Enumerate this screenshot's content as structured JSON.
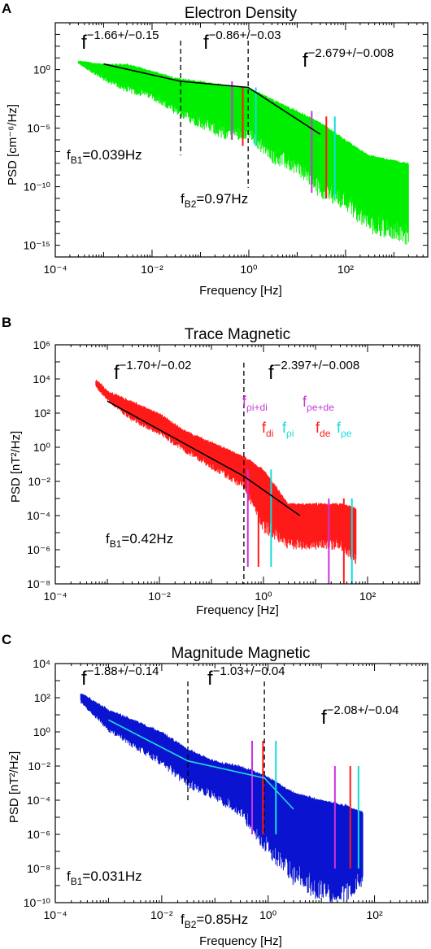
{
  "figure": {
    "panels": [
      {
        "letter": "A",
        "title": "Electron Density",
        "ylabel": "PSD [cm⁻⁶/Hz]",
        "xlabel": "Frequency [Hz]"
      },
      {
        "letter": "B",
        "title": "Trace Magnetic",
        "ylabel": "PSD [nT²/Hz]",
        "xlabel": "Frequency [Hz]"
      },
      {
        "letter": "C",
        "title": "Magnitude Magnetic",
        "ylabel": "PSD [nT²/Hz]",
        "xlabel": "Frequency [Hz]"
      }
    ]
  },
  "chart_data": [
    {
      "type": "line",
      "title": "Electron Density",
      "xlabel": "Frequency [Hz]",
      "ylabel": "PSD [cm^-6/Hz]",
      "xscale": "log",
      "yscale": "log",
      "xlim": [
        0.0001,
        5000
      ],
      "ylim": [
        1e-16,
        10000.0
      ],
      "xticks": [
        "10⁻⁴",
        "10⁻²",
        "10⁰",
        "10²"
      ],
      "yticks": [
        "10⁰",
        "10⁻⁵",
        "10⁻¹⁰",
        "10⁻¹⁵"
      ],
      "spectrum_color": "#00ee00",
      "fit_color": "#000000",
      "spectrum_envelope": {
        "x": [
          0.0003,
          0.001,
          0.003,
          0.01,
          0.03,
          0.1,
          0.3,
          1,
          3,
          10,
          30,
          100,
          300,
          2000
        ],
        "upper": [
          6,
          3,
          3,
          0.8,
          0.2,
          0.1,
          0.05,
          0.03,
          0.003,
          0.0003,
          3e-05,
          1e-06,
          5e-08,
          1e-08
        ],
        "lower": [
          3,
          0.1,
          0.01,
          0.003,
          0.0001,
          1e-05,
          1e-06,
          1e-06,
          1e-08,
          1e-09,
          1e-11,
          1e-12,
          1e-14,
          1e-15
        ]
      },
      "fit": {
        "x": [
          0.001,
          0.039,
          0.97,
          30
        ],
        "y": [
          3,
          0.1,
          0.03,
          3e-06
        ]
      },
      "fit_labels": [
        {
          "base": "f",
          "exp": "−1.66+/−0.15"
        },
        {
          "base": "f",
          "exp": "−0.86+/−0.03"
        },
        {
          "base": "f",
          "exp": "−2.679+/−0.008"
        }
      ],
      "breaks": [
        {
          "label": "f",
          "sub": "B1",
          "value": "=0.039Hz",
          "x": 0.039
        },
        {
          "label": "f",
          "sub": "B2",
          "value": "=0.97Hz",
          "x": 0.97
        }
      ],
      "vlines": [
        {
          "x": 0.45,
          "color": "#cc33dd",
          "top": 0.1,
          "bottom": 1e-06
        },
        {
          "x": 0.75,
          "color": "#ff1a1a",
          "top": 0.03,
          "bottom": 3e-07
        },
        {
          "x": 1.4,
          "color": "#11dddd",
          "top": 0.03,
          "bottom": 3e-07
        },
        {
          "x": 20,
          "color": "#cc33dd",
          "top": 0.0003,
          "bottom": 3e-11
        },
        {
          "x": 40,
          "color": "#ff1a1a",
          "top": 0.0001,
          "bottom": 1e-11
        },
        {
          "x": 60,
          "color": "#11dddd",
          "top": 0.0001,
          "bottom": 1e-11
        }
      ]
    },
    {
      "type": "line",
      "title": "Trace Magnetic",
      "xlabel": "Frequency [Hz]",
      "ylabel": "PSD [nT^2/Hz]",
      "xscale": "log",
      "yscale": "log",
      "xlim": [
        0.0001,
        1000
      ],
      "ylim": [
        1e-08,
        1000000.0
      ],
      "xticks": [
        "10⁻⁴",
        "10⁻²",
        "10⁰",
        "10²"
      ],
      "yticks": [
        "10⁶",
        "10⁴",
        "10²",
        "10⁰",
        "10⁻²",
        "10⁻⁴",
        "10⁻⁶",
        "10⁻⁸"
      ],
      "spectrum_color": "#ff1a1a",
      "fit_color": "#000000",
      "spectrum_envelope": {
        "x": [
          0.0006,
          0.001,
          0.003,
          0.01,
          0.03,
          0.1,
          0.42,
          1,
          3,
          10,
          30,
          60
        ],
        "upper": [
          10000,
          2000,
          500,
          100,
          10,
          2,
          0.3,
          0.05,
          0.0005,
          0.0005,
          0.0005,
          0.0003
        ],
        "lower": [
          3000,
          500,
          30,
          5,
          0.5,
          0.05,
          0.003,
          1e-05,
          1e-06,
          1e-06,
          1e-06,
          1e-07
        ]
      },
      "fit": {
        "x": [
          0.001,
          0.42,
          5
        ],
        "y": [
          500,
          0.02,
          0.0001
        ]
      },
      "fit_labels": [
        {
          "base": "f",
          "exp": "−1.70+/−0.02"
        },
        {
          "base": "f",
          "exp": "−2.397+/−0.008"
        }
      ],
      "breaks": [
        {
          "label": "f",
          "sub": "B1",
          "value": "=0.42Hz",
          "x": 0.42
        }
      ],
      "legend": [
        {
          "text": "f",
          "sub": "ρi+di",
          "color": "#cc33dd"
        },
        {
          "text": "f",
          "sub": "ρe+de",
          "color": "#cc33dd"
        },
        {
          "text": "f",
          "sub": "di",
          "color": "#ff1a1a"
        },
        {
          "text": "f",
          "sub": "ρi",
          "color": "#11dddd"
        },
        {
          "text": "f",
          "sub": "de",
          "color": "#ff1a1a"
        },
        {
          "text": "f",
          "sub": "ρe",
          "color": "#11dddd"
        }
      ],
      "vlines": [
        {
          "x": 0.5,
          "color": "#cc33dd",
          "top": 0.05,
          "bottom": 1e-07
        },
        {
          "x": 0.8,
          "color": "#ff1a1a",
          "top": 0.05,
          "bottom": 1e-07
        },
        {
          "x": 1.4,
          "color": "#11dddd",
          "top": 0.05,
          "bottom": 1e-07
        },
        {
          "x": 18,
          "color": "#cc33dd",
          "top": 0.001,
          "bottom": 1e-08
        },
        {
          "x": 35,
          "color": "#ff1a1a",
          "top": 0.001,
          "bottom": 1e-08
        },
        {
          "x": 50,
          "color": "#11dddd",
          "top": 0.001,
          "bottom": 1e-08
        }
      ]
    },
    {
      "type": "line",
      "title": "Magnitude Magnetic",
      "xlabel": "Frequency [Hz]",
      "ylabel": "PSD [nT^2/Hz]",
      "xscale": "log",
      "yscale": "log",
      "xlim": [
        0.0001,
        1000
      ],
      "ylim": [
        1e-10,
        10000.0
      ],
      "xticks": [
        "10⁻⁴",
        "10⁻²",
        "10⁰",
        "10²"
      ],
      "yticks": [
        "10⁴",
        "10²",
        "10⁰",
        "10⁻²",
        "10⁻⁴",
        "10⁻⁶",
        "10⁻⁸",
        "10⁻¹⁰"
      ],
      "spectrum_color": "#0a14d0",
      "fit_color": "#22dddd",
      "spectrum_envelope": {
        "x": [
          0.0003,
          0.001,
          0.003,
          0.01,
          0.031,
          0.1,
          0.3,
          0.85,
          3,
          10,
          30,
          60
        ],
        "upper": [
          200,
          20,
          5,
          1,
          0.1,
          0.02,
          0.01,
          0.003,
          0.0003,
          0.0001,
          5e-05,
          2e-05
        ],
        "lower": [
          50,
          1,
          0.1,
          0.01,
          0.0005,
          0.0001,
          1e-05,
          1e-07,
          1e-09,
          1e-10,
          1e-10,
          1e-09
        ]
      },
      "fit": {
        "x": [
          0.001,
          0.031,
          0.85,
          3
        ],
        "y": [
          5,
          0.02,
          0.002,
          3e-05
        ]
      },
      "fit_labels": [
        {
          "base": "f",
          "exp": "−1.88+/−0.14"
        },
        {
          "base": "f",
          "exp": "−1.03+/−0.04"
        },
        {
          "base": "f",
          "exp": "−2.08+/−0.04"
        }
      ],
      "breaks": [
        {
          "label": "f",
          "sub": "B1",
          "value": "=0.031Hz",
          "x": 0.031
        },
        {
          "label": "f",
          "sub": "B2",
          "value": "=0.85Hz",
          "x": 0.85
        }
      ],
      "vlines": [
        {
          "x": 0.5,
          "color": "#cc33dd",
          "top": 0.3,
          "bottom": 1e-06
        },
        {
          "x": 0.8,
          "color": "#ff1a1a",
          "top": 0.3,
          "bottom": 1e-06
        },
        {
          "x": 1.4,
          "color": "#11dddd",
          "top": 0.3,
          "bottom": 1e-06
        },
        {
          "x": 18,
          "color": "#cc33dd",
          "top": 0.01,
          "bottom": 1e-08
        },
        {
          "x": 35,
          "color": "#ff1a1a",
          "top": 0.01,
          "bottom": 1e-08
        },
        {
          "x": 50,
          "color": "#11dddd",
          "top": 0.01,
          "bottom": 1e-08
        }
      ]
    }
  ]
}
